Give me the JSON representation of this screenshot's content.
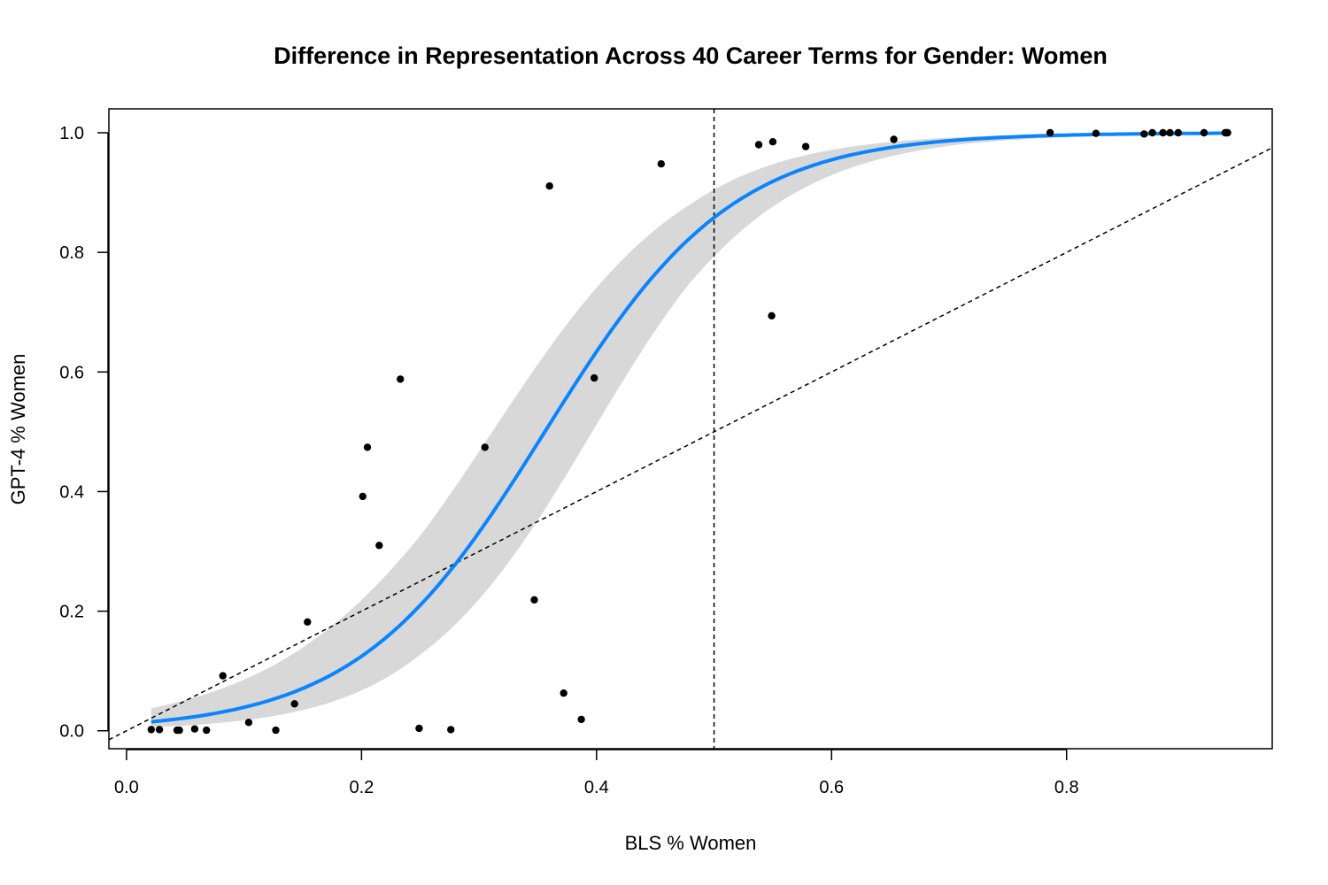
{
  "chart_data": {
    "type": "scatter",
    "title": "Difference in Representation Across 40 Career Terms for Gender: Women",
    "xlabel": "BLS % Women",
    "ylabel": "GPT-4 % Women",
    "xlim": [
      -0.015,
      0.975
    ],
    "ylim": [
      -0.03,
      1.04
    ],
    "xticks": [
      "0.0",
      "0.2",
      "0.4",
      "0.6",
      "0.8"
    ],
    "yticks": [
      "0.0",
      "0.2",
      "0.4",
      "0.6",
      "0.8",
      "1.0"
    ],
    "grid": false,
    "legend": "none",
    "reference_lines": {
      "vertical_x": 0.5,
      "identity_diagonal": true
    },
    "series": [
      {
        "type": "scatter",
        "color": "#000000",
        "points": [
          [
            0.021,
            0.002
          ],
          [
            0.028,
            0.002
          ],
          [
            0.043,
            0.001
          ],
          [
            0.045,
            0.001
          ],
          [
            0.058,
            0.003
          ],
          [
            0.068,
            0.001
          ],
          [
            0.082,
            0.092
          ],
          [
            0.104,
            0.014
          ],
          [
            0.127,
            0.001
          ],
          [
            0.143,
            0.045
          ],
          [
            0.154,
            0.182
          ],
          [
            0.201,
            0.392
          ],
          [
            0.205,
            0.474
          ],
          [
            0.215,
            0.31
          ],
          [
            0.233,
            0.588
          ],
          [
            0.249,
            0.004
          ],
          [
            0.276,
            0.002
          ],
          [
            0.305,
            0.474
          ],
          [
            0.347,
            0.219
          ],
          [
            0.36,
            0.911
          ],
          [
            0.372,
            0.063
          ],
          [
            0.387,
            0.019
          ],
          [
            0.398,
            0.59
          ],
          [
            0.455,
            0.948
          ],
          [
            0.538,
            0.98
          ],
          [
            0.549,
            0.694
          ],
          [
            0.55,
            0.985
          ],
          [
            0.578,
            0.977
          ],
          [
            0.653,
            0.989
          ],
          [
            0.786,
            1.0
          ],
          [
            0.825,
            0.999
          ],
          [
            0.866,
            0.998
          ],
          [
            0.873,
            1.0
          ],
          [
            0.882,
            1.0
          ],
          [
            0.888,
            1.0
          ],
          [
            0.895,
            1.0
          ],
          [
            0.917,
            1.0
          ],
          [
            0.935,
            1.0
          ],
          [
            0.936,
            1.0
          ],
          [
            0.937,
            1.0
          ]
        ]
      },
      {
        "type": "logistic-fit",
        "color": "#0a84ff",
        "band_color": "#d8d8d8",
        "x_range": [
          0.021,
          0.937
        ],
        "intercept": -4.45,
        "slope": 12.5,
        "band_halfwidth_logit": [
          0.95,
          0.6,
          0.45,
          0.5,
          0.85
        ]
      }
    ]
  }
}
